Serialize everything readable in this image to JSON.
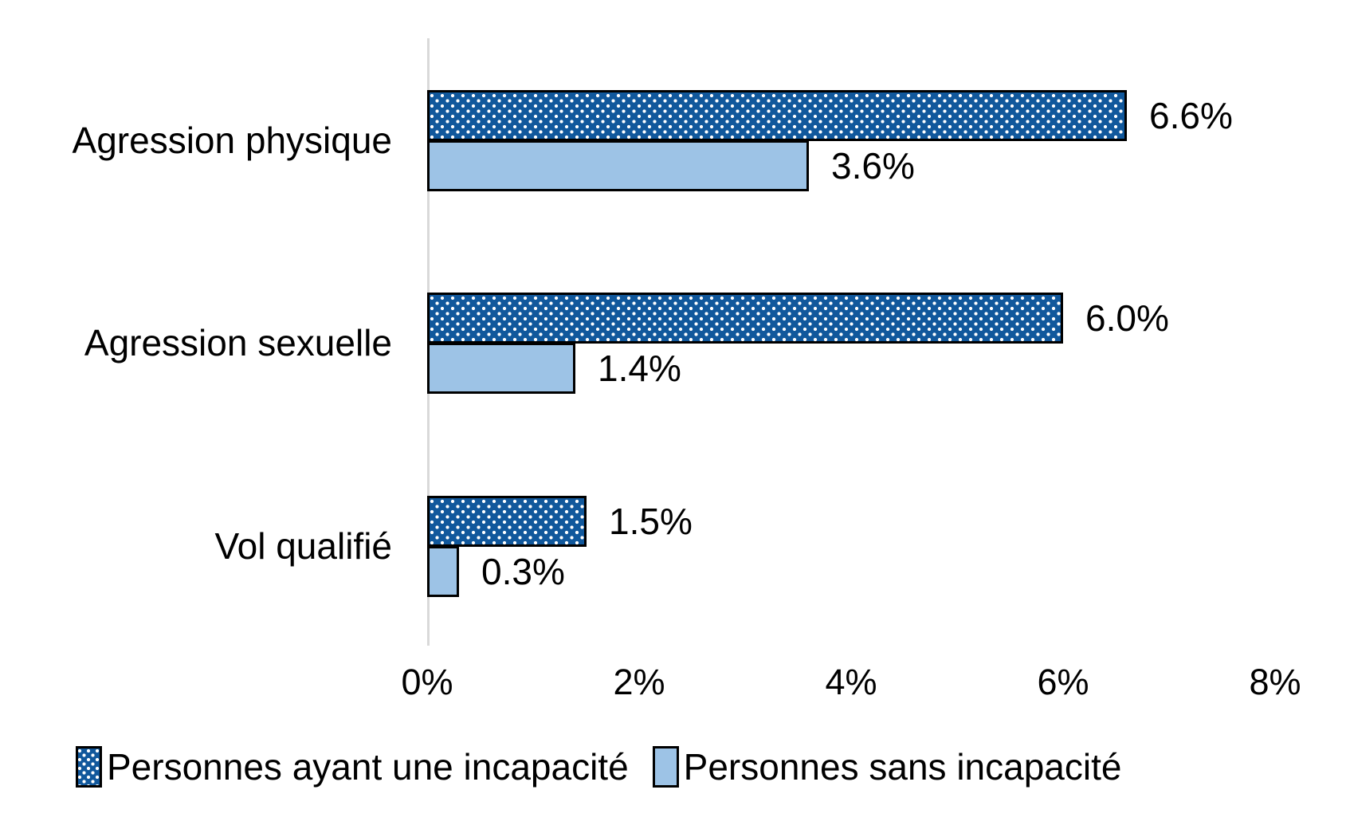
{
  "chart_data": {
    "type": "bar",
    "orientation": "horizontal",
    "title": "",
    "categories": [
      "Agression physique",
      "Agression sexuelle",
      "Vol qualifié"
    ],
    "series": [
      {
        "name": "Personnes ayant une incapacité",
        "pattern": "white-dots-on-dark-blue",
        "color": "#11589C",
        "values": [
          6.6,
          6.0,
          1.5
        ],
        "value_labels": [
          "6.6%",
          "6.0%",
          "1.5%"
        ]
      },
      {
        "name": "Personnes sans incapacité",
        "pattern": "solid",
        "color": "#9DC3E6",
        "values": [
          3.6,
          1.4,
          0.3
        ],
        "value_labels": [
          "3.6%",
          "1.4%",
          "0.3%"
        ]
      }
    ],
    "x_ticks": [
      "0%",
      "2%",
      "4%",
      "6%",
      "8%"
    ],
    "xlim": [
      0,
      8
    ],
    "grid": false,
    "legend_position": "bottom",
    "axis_line_color": "#D9D9D9",
    "bar_border_color": "#000000"
  }
}
